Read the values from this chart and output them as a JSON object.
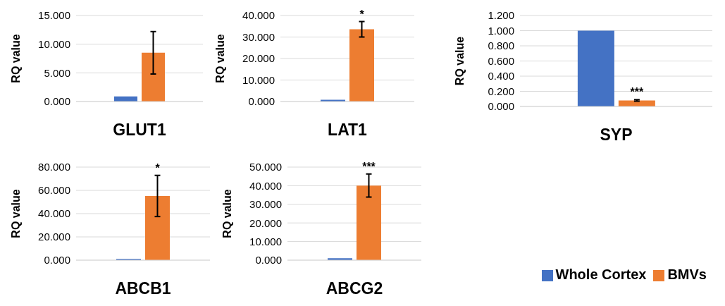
{
  "chart_data": [
    {
      "type": "bar",
      "xlabel": "GLUT1",
      "ylabel": "RQ value",
      "categories": [
        null
      ],
      "series": [
        {
          "color": "#4472c4",
          "values": [
            0.9
          ]
        },
        {
          "color": "#ed7d31",
          "values": [
            8.5
          ],
          "errors": [
            3.7
          ]
        }
      ],
      "ylim": [
        0,
        15
      ],
      "yticks": [
        {
          "value": 0,
          "label": "0.000"
        },
        {
          "value": 5,
          "label": "5.000"
        },
        {
          "value": 10,
          "label": "10.000"
        },
        {
          "value": 15,
          "label": "15.000"
        }
      ],
      "grid": "y"
    },
    {
      "type": "bar",
      "xlabel": "LAT1",
      "ylabel": "RQ value",
      "categories": [
        null
      ],
      "series": [
        {
          "color": "#4472c4",
          "values": [
            0.8
          ]
        },
        {
          "color": "#ed7d31",
          "values": [
            33.6
          ],
          "errors": [
            3.6
          ]
        }
      ],
      "ylim": [
        0,
        40
      ],
      "yticks": [
        {
          "value": 0,
          "label": "0.000"
        },
        {
          "value": 10,
          "label": "10.000"
        },
        {
          "value": 20,
          "label": "20.000"
        },
        {
          "value": 30,
          "label": "30.000"
        },
        {
          "value": 40,
          "label": "40.000"
        }
      ],
      "grid": "y",
      "annotations": [
        "*"
      ]
    },
    {
      "type": "bar",
      "xlabel": "SYP",
      "ylabel": "RQ value",
      "categories": [
        null
      ],
      "series": [
        {
          "name": "Whole Cortex",
          "color": "#4472c4",
          "values": [
            1.0
          ]
        },
        {
          "name": "BMVs",
          "color": "#ed7d31",
          "values": [
            0.08
          ],
          "errors": [
            0.01
          ]
        }
      ],
      "ylim": [
        0,
        1.2
      ],
      "yticks": [
        {
          "value": 0,
          "label": "0.000"
        },
        {
          "value": 0.2,
          "label": "0.200"
        },
        {
          "value": 0.4,
          "label": "0.400"
        },
        {
          "value": 0.6,
          "label": "0.600"
        },
        {
          "value": 0.8,
          "label": "0.800"
        },
        {
          "value": 1,
          "label": "1.000"
        },
        {
          "value": 1.2,
          "label": "1.200"
        }
      ],
      "grid": "y",
      "annotations": [
        "***"
      ],
      "legend": "bottom right"
    },
    {
      "type": "bar",
      "xlabel": "ABCB1",
      "ylabel": "RQ value",
      "categories": [
        null
      ],
      "series": [
        {
          "color": "#4472c4",
          "values": [
            1.0
          ]
        },
        {
          "color": "#ed7d31",
          "values": [
            55.2
          ],
          "errors": [
            17.7
          ]
        }
      ],
      "ylim": [
        0,
        80
      ],
      "yticks": [
        {
          "value": 0,
          "label": "0.000"
        },
        {
          "value": 20,
          "label": "20.000"
        },
        {
          "value": 40,
          "label": "40.000"
        },
        {
          "value": 60,
          "label": "60.000"
        },
        {
          "value": 80,
          "label": "80.000"
        }
      ],
      "grid": "y",
      "annotations": [
        "*"
      ]
    },
    {
      "type": "bar",
      "xlabel": "ABCG2",
      "ylabel": "RQ value",
      "categories": [
        null
      ],
      "series": [
        {
          "color": "#4472c4",
          "values": [
            1.0
          ]
        },
        {
          "color": "#ed7d31",
          "values": [
            40.1
          ],
          "errors": [
            6.2
          ]
        }
      ],
      "ylim": [
        0,
        50
      ],
      "yticks": [
        {
          "value": 0,
          "label": "0.000"
        },
        {
          "value": 10,
          "label": "10.000"
        },
        {
          "value": 20,
          "label": "20.000"
        },
        {
          "value": 30,
          "label": "30.000"
        },
        {
          "value": 40,
          "label": "40.000"
        },
        {
          "value": 50,
          "label": "50.000"
        }
      ],
      "grid": "y",
      "annotations": [
        "***"
      ]
    }
  ]
}
